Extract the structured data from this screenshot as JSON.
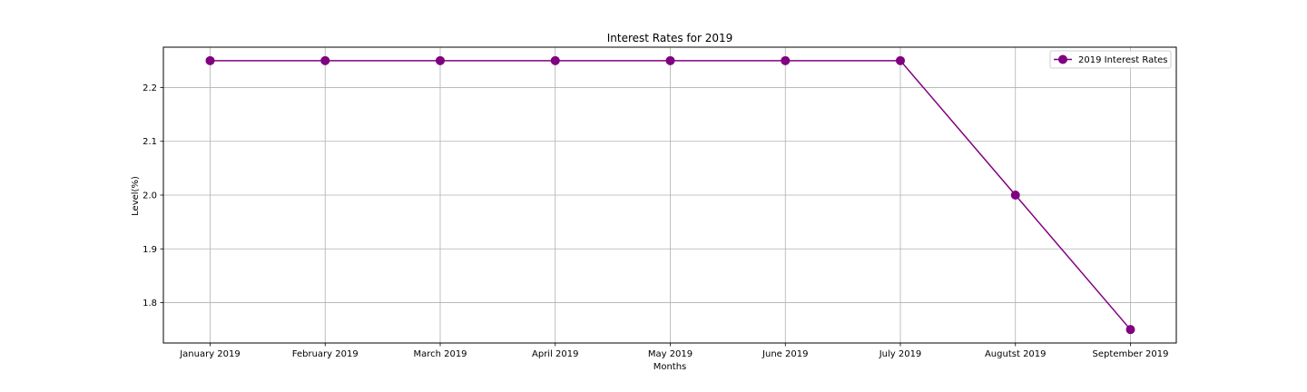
{
  "chart_data": {
    "type": "line",
    "title": "Interest Rates for 2019",
    "xlabel": "Months",
    "ylabel": "Level(%)",
    "categories": [
      "January 2019",
      "February 2019",
      "March 2019",
      "April 2019",
      "May 2019",
      "June 2019",
      "July 2019",
      "Augutst 2019",
      "September 2019"
    ],
    "series": [
      {
        "name": "2019 Interest Rates",
        "values": [
          2.25,
          2.25,
          2.25,
          2.25,
          2.25,
          2.25,
          2.25,
          2.0,
          1.75
        ],
        "color": "#800080",
        "marker": "circle"
      }
    ],
    "ylim": [
      1.725,
      2.275
    ],
    "yticks": [
      1.8,
      1.9,
      2.0,
      2.1,
      2.2
    ],
    "ytick_labels": [
      "1.8",
      "1.9",
      "2.0",
      "2.1",
      "2.2"
    ],
    "grid": true,
    "legend_position": "upper right"
  }
}
